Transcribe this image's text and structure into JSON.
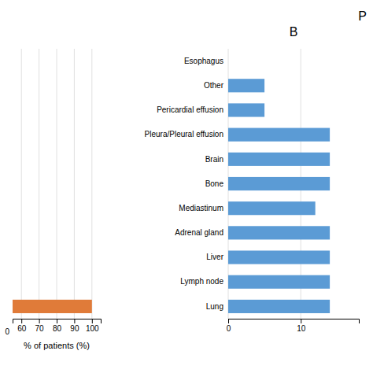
{
  "chart_data": [
    {
      "type": "bar",
      "orientation": "horizontal",
      "categories": [
        null
      ],
      "values": [
        100
      ],
      "color": "#e07b39",
      "xlabel": "% of patients (%)",
      "xlim": [
        55,
        105
      ],
      "xticks": [
        60,
        70,
        80,
        90,
        100
      ],
      "grid": true,
      "tick_labels": "x",
      "annotations": [
        "0"
      ]
    },
    {
      "type": "bar",
      "orientation": "horizontal",
      "title": "B",
      "categories": [
        "Lung",
        "Lymph node",
        "Liver",
        "Adrenal gland",
        "Mediastinum",
        "Bone",
        "Brain",
        "Pleura/Pleural effusion",
        "Pericardial effusion",
        "Other",
        "Esophagus"
      ],
      "values": [
        14,
        14,
        14,
        14,
        12,
        14,
        14,
        14,
        5,
        5,
        0
      ],
      "color": "#5b9bd5",
      "xlim": [
        0,
        18
      ],
      "xticks": [
        0,
        10
      ],
      "grid": true,
      "annotations": [
        "P"
      ]
    }
  ]
}
